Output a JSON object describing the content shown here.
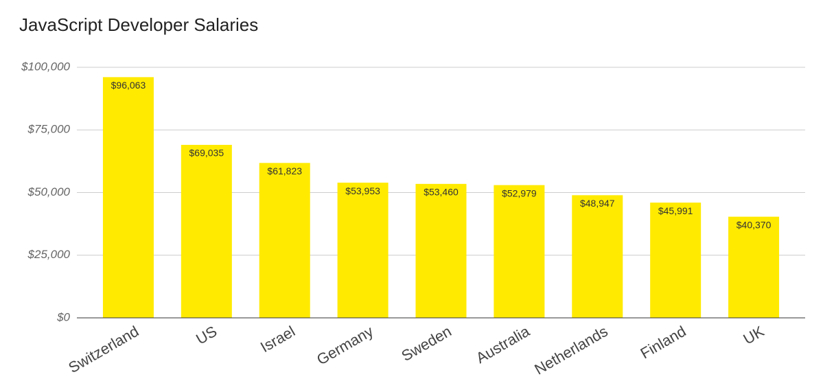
{
  "chart_data": {
    "type": "bar",
    "title": "JavaScript Developer Salaries",
    "categories": [
      "Switzerland",
      "US",
      "Israel",
      "Germany",
      "Sweden",
      "Australia",
      "Netherlands",
      "Finland",
      "UK"
    ],
    "values": [
      96063,
      69035,
      61823,
      53953,
      53460,
      52979,
      48947,
      45991,
      40370
    ],
    "value_labels": [
      "$96,063",
      "$69,035",
      "$61,823",
      "$53,953",
      "$53,460",
      "$52,979",
      "$48,947",
      "$45,991",
      "$40,370"
    ],
    "color": "#ffea00",
    "ylim": [
      0,
      100000
    ],
    "yticks": [
      {
        "value": 0,
        "label": "$0"
      },
      {
        "value": 25000,
        "label": "$25,000"
      },
      {
        "value": 50000,
        "label": "$50,000"
      },
      {
        "value": 75000,
        "label": "$75,000"
      },
      {
        "value": 100000,
        "label": "$100,000"
      }
    ],
    "grid": true
  }
}
